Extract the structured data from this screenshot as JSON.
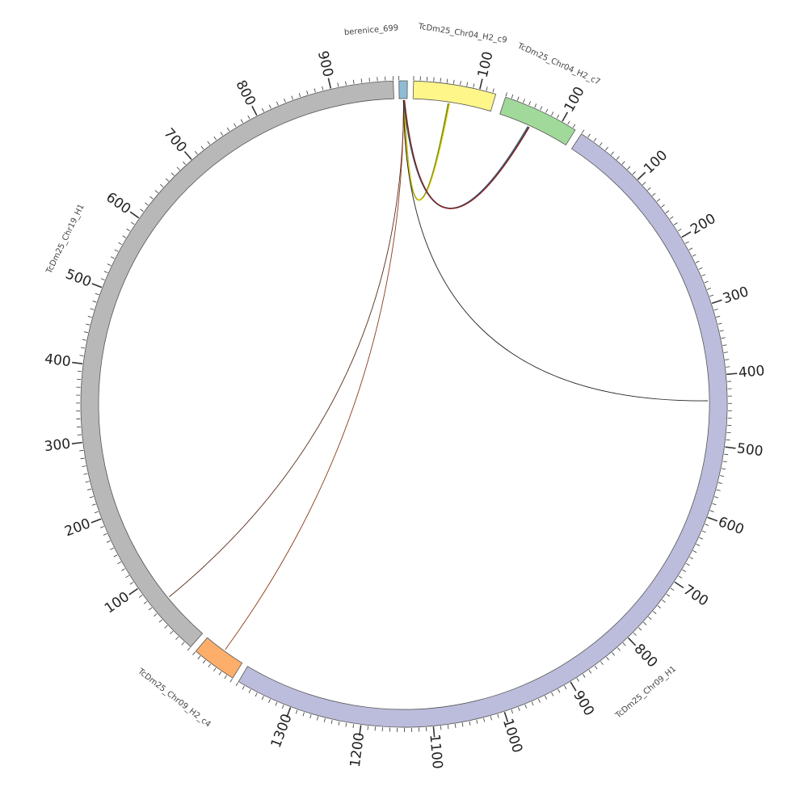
{
  "diagram": {
    "type": "circos",
    "background": "#ffffff",
    "segments": [
      {
        "id": "berenice",
        "label": "berenice_699",
        "length": 4,
        "start_deg": 359.1,
        "end_deg": 0.6,
        "color": "#8fbcd4",
        "tick_labels": []
      },
      {
        "id": "chr04_c9",
        "label": "TcDm25_Chr04_H2_c9",
        "length": 125,
        "start_deg": 1.7,
        "end_deg": 16.5,
        "color": "#fff68a",
        "tick_labels": [
          "100"
        ]
      },
      {
        "id": "chr04_c7",
        "label": "TcDm25_Chr04_H2_c7",
        "length": 125,
        "start_deg": 18.3,
        "end_deg": 32.0,
        "color": "#a1d99b",
        "tick_labels": [
          "100"
        ]
      },
      {
        "id": "chr09_h1",
        "label": "TcDm25_Chr09_H1",
        "length": 1380,
        "start_deg": 33.3,
        "end_deg": 210.8,
        "color": "#bcbddc",
        "tick_labels": [
          "100",
          "200",
          "300",
          "400",
          "500",
          "600",
          "700",
          "800",
          "900",
          "1000",
          "1100",
          "1200",
          "1300"
        ]
      },
      {
        "id": "chr09_c4",
        "label": "TcDm25_Chr09_H2_c4",
        "length": 70,
        "start_deg": 212.0,
        "end_deg": 220.1,
        "color": "#fdae6b",
        "tick_labels": []
      },
      {
        "id": "chr19_h1",
        "label": "TcDm25_Chr19_H1",
        "length": 980,
        "start_deg": 221.3,
        "end_deg": 358.1,
        "color": "#b8b8b8",
        "tick_labels": [
          "100",
          "200",
          "300",
          "400",
          "500",
          "600",
          "700",
          "800",
          "900"
        ]
      }
    ],
    "links": [
      {
        "from": "berenice",
        "to": "chr04_c9",
        "color": "#1a7a3a"
      },
      {
        "from": "berenice",
        "to": "chr04_c9",
        "color": "#d9c400"
      },
      {
        "from": "berenice",
        "to": "chr04_c9",
        "color": "#6b8e23"
      },
      {
        "from": "berenice",
        "to": "chr04_c9",
        "color": "#2e4a2e"
      },
      {
        "from": "berenice",
        "to": "chr04_c9",
        "color": "#e8d000"
      },
      {
        "from": "berenice",
        "to": "chr04_c7",
        "color": "#2e5a8a"
      },
      {
        "from": "berenice",
        "to": "chr04_c7",
        "color": "#7b4a9e"
      },
      {
        "from": "berenice",
        "to": "chr04_c7",
        "color": "#2ca02c"
      },
      {
        "from": "berenice",
        "to": "chr04_c7",
        "color": "#333366"
      },
      {
        "from": "berenice",
        "to": "chr04_c7",
        "color": "#1f8f8f"
      },
      {
        "from": "berenice",
        "to": "chr04_c7",
        "color": "#8b1a1a"
      },
      {
        "from": "berenice",
        "to": "chr19_h1",
        "color": "#5a2a1a"
      },
      {
        "from": "berenice",
        "to": "chr09_c4",
        "color": "#8b3a1a"
      },
      {
        "from": "berenice",
        "to": "chr09_h1",
        "color": "#222222"
      }
    ]
  }
}
